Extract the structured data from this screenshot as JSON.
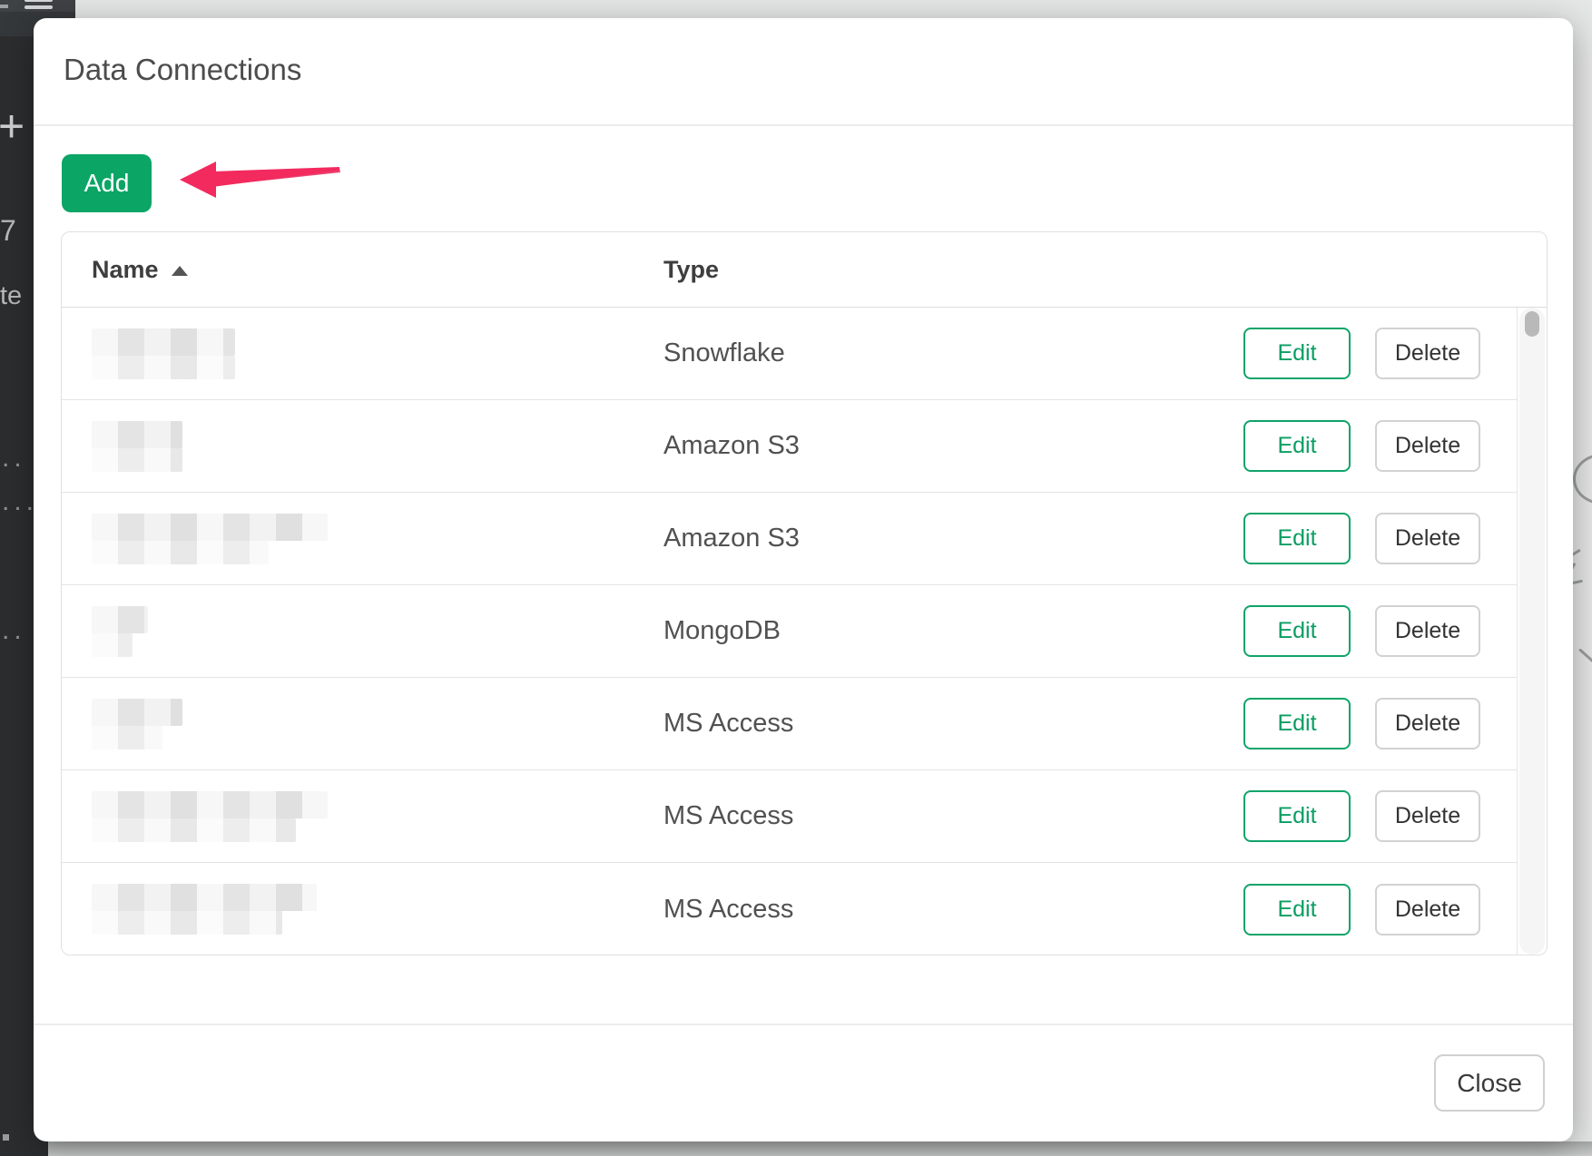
{
  "colors": {
    "accent_green": "#0ba565",
    "edit_green": "#0a9e62",
    "arrow_pink": "#f32a5e",
    "sidebar_dark": "#2b2d2f"
  },
  "chrome": {
    "menu_icon": "hamburger-icon",
    "sidebar_fragments": [
      "+",
      "7",
      "te",
      "..",
      "...",
      ".."
    ]
  },
  "modal": {
    "title": "Data Connections",
    "add_button_label": "Add",
    "close_button_label": "Close",
    "annotation": "arrow-pointing-to-add-button",
    "table": {
      "name_header": "Name",
      "type_header": "Type",
      "sort_column": "Name",
      "sort_direction": "ascending",
      "edit_label": "Edit",
      "delete_label": "Delete",
      "rows": [
        {
          "name_redacted": true,
          "type": "Snowflake",
          "redact": [
            158,
            158
          ]
        },
        {
          "name_redacted": true,
          "type": "Amazon S3",
          "redact": [
            100,
            100
          ]
        },
        {
          "name_redacted": true,
          "type": "Amazon S3",
          "redact": [
            260,
            195
          ]
        },
        {
          "name_redacted": true,
          "type": "MongoDB",
          "redact": [
            62,
            45
          ]
        },
        {
          "name_redacted": true,
          "type": "MS Access",
          "redact": [
            100,
            78
          ]
        },
        {
          "name_redacted": true,
          "type": "MS Access",
          "redact": [
            260,
            225
          ]
        },
        {
          "name_redacted": true,
          "type": "MS Access",
          "redact": [
            248,
            210
          ]
        }
      ]
    }
  }
}
